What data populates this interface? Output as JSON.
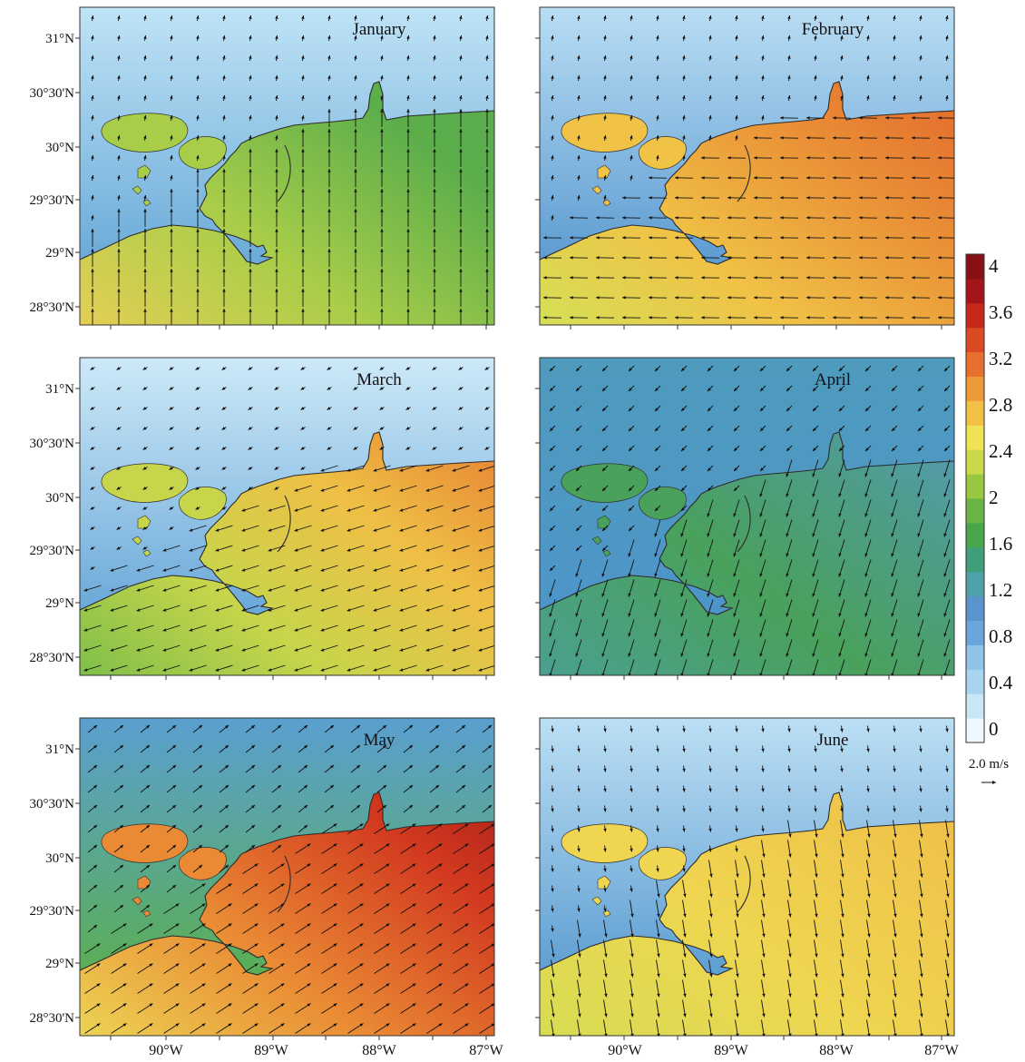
{
  "colorbar": {
    "ticks": [
      "4",
      "3.6",
      "3.2",
      "2.8",
      "2.4",
      "2",
      "1.6",
      "1.2",
      "0.8",
      "0.4",
      "0"
    ],
    "colors": [
      "#f0f8ff",
      "#c8e6f6",
      "#a8d4ef",
      "#8fc3e8",
      "#6aa6dc",
      "#5b93cc",
      "#4da1a7",
      "#3f9f7a",
      "#4aa64b",
      "#68b444",
      "#98c842",
      "#c9d94a",
      "#efe254",
      "#f2c045",
      "#ee9a3a",
      "#e86f2e",
      "#dc4a24",
      "#c8281c",
      "#a31518",
      "#861014"
    ],
    "reference_vector_label": "2.0 m/s"
  },
  "axes": {
    "lat_labels": [
      "31°N",
      "30°30'N",
      "30°N",
      "29°30'N",
      "29°N",
      "28°30'N"
    ],
    "lon_labels": [
      "90°W",
      "89°W",
      "88°W",
      "87°W"
    ]
  },
  "panels": [
    {
      "month": "January",
      "land": [
        "#bfe3f6",
        "#6aaad8"
      ],
      "sea": [
        [
          0.0,
          "#e3cf55"
        ],
        [
          0.35,
          "#a8cd49"
        ],
        [
          0.7,
          "#5cae4b"
        ],
        [
          1.0,
          "#56a94f"
        ]
      ],
      "wind": [
        0.0,
        1.0
      ],
      "land_wind": [
        0.05,
        0.3
      ]
    },
    {
      "month": "February",
      "land": [
        "#b8ddf3",
        "#5d9bd1"
      ],
      "sea": [
        [
          0.0,
          "#d5e057"
        ],
        [
          0.3,
          "#f0c246"
        ],
        [
          0.65,
          "#e98a35"
        ],
        [
          1.0,
          "#df5a28"
        ]
      ],
      "wind": [
        -1.0,
        0.02
      ],
      "land_wind": [
        0.05,
        0.3
      ]
    },
    {
      "month": "March",
      "land": [
        "#cde9f8",
        "#6aa8d8"
      ],
      "sea": [
        [
          0.0,
          "#7fbf4a"
        ],
        [
          0.3,
          "#c7d54b"
        ],
        [
          0.6,
          "#efbf45"
        ],
        [
          1.0,
          "#e3692c"
        ]
      ],
      "wind": [
        -0.95,
        -0.3
      ],
      "land_wind": [
        -0.25,
        -0.15
      ]
    },
    {
      "month": "April",
      "land": [
        "#4e9bbd",
        "#4d95c9"
      ],
      "sea": [
        [
          0.0,
          "#4aa08e"
        ],
        [
          0.4,
          "#49a15c"
        ],
        [
          0.7,
          "#4e9c8c"
        ],
        [
          1.0,
          "#5a9ad0"
        ]
      ],
      "wind": [
        -0.3,
        -0.95
      ],
      "land_wind": [
        -0.3,
        -0.3
      ]
    },
    {
      "month": "May",
      "land": [
        "#5a9fd0",
        "#5aae55"
      ],
      "sea": [
        [
          0.0,
          "#ecd454"
        ],
        [
          0.35,
          "#ea8a34"
        ],
        [
          0.7,
          "#d2391f"
        ],
        [
          1.0,
          "#9c1418"
        ]
      ],
      "wind": [
        0.85,
        0.55
      ],
      "land_wind": [
        0.5,
        0.4
      ]
    },
    {
      "month": "June",
      "land": [
        "#bcdff4",
        "#5e9ed2"
      ],
      "sea": [
        [
          0.0,
          "#d7dd53"
        ],
        [
          0.4,
          "#efd550"
        ],
        [
          0.75,
          "#efc54a"
        ],
        [
          1.0,
          "#f0b343"
        ]
      ],
      "wind": [
        0.15,
        -0.95
      ],
      "land_wind": [
        0.05,
        -0.35
      ]
    }
  ]
}
